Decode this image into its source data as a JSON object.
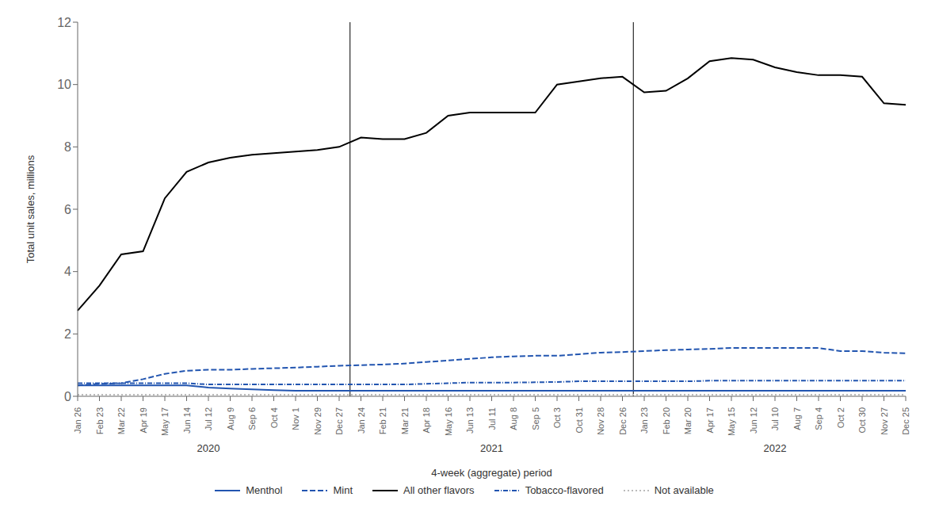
{
  "chart_data": {
    "type": "line",
    "xlabel": "4-week (aggregate) period",
    "ylabel": "Total unit sales, millions",
    "categories": [
      "Jan 26",
      "Feb 23",
      "Mar 22",
      "Apr 19",
      "May 17",
      "Jun 14",
      "Jul 12",
      "Aug 9",
      "Sep 6",
      "Oct 4",
      "Nov 1",
      "Nov 29",
      "Dec 27",
      "Jan 24",
      "Feb 21",
      "Mar 21",
      "Apr 18",
      "May 16",
      "Jun 13",
      "Jul 11",
      "Aug 8",
      "Sep 5",
      "Oct 3",
      "Oct 31",
      "Nov 28",
      "Dec 26",
      "Jan 23",
      "Feb 20",
      "Mar 20",
      "Apr 17",
      "May 15",
      "Jun 12",
      "Jul 10",
      "Aug 7",
      "Sep 4",
      "Oct 2",
      "Oct 30",
      "Nov 27",
      "Dec 25"
    ],
    "series": [
      {
        "name": "Menthol",
        "color": "#2255b0",
        "line_style": "solid",
        "values": [
          0.35,
          0.35,
          0.35,
          0.35,
          0.35,
          0.35,
          0.28,
          0.25,
          0.22,
          0.2,
          0.18,
          0.18,
          0.18,
          0.18,
          0.18,
          0.18,
          0.18,
          0.18,
          0.18,
          0.18,
          0.18,
          0.18,
          0.18,
          0.18,
          0.18,
          0.18,
          0.18,
          0.18,
          0.18,
          0.18,
          0.18,
          0.18,
          0.18,
          0.18,
          0.18,
          0.18,
          0.18,
          0.18,
          0.18
        ]
      },
      {
        "name": "Mint",
        "color": "#2255b0",
        "line_style": "dashed",
        "values": [
          0.35,
          0.4,
          0.42,
          0.55,
          0.72,
          0.82,
          0.85,
          0.85,
          0.88,
          0.9,
          0.92,
          0.95,
          0.98,
          1.0,
          1.02,
          1.05,
          1.1,
          1.15,
          1.2,
          1.25,
          1.28,
          1.3,
          1.3,
          1.35,
          1.4,
          1.42,
          1.45,
          1.48,
          1.5,
          1.52,
          1.55,
          1.55,
          1.55,
          1.55,
          1.55,
          1.45,
          1.45,
          1.4,
          1.38
        ]
      },
      {
        "name": "All other flavors",
        "color": "#000000",
        "line_style": "solid",
        "values": [
          2.75,
          3.55,
          4.55,
          4.65,
          6.35,
          7.2,
          7.5,
          7.65,
          7.75,
          7.8,
          7.85,
          7.9,
          8.0,
          8.3,
          8.25,
          8.25,
          8.45,
          9.0,
          9.1,
          9.1,
          9.1,
          9.1,
          10.0,
          10.1,
          10.2,
          10.25,
          9.75,
          9.8,
          10.2,
          10.75,
          10.85,
          10.8,
          10.55,
          10.4,
          10.3,
          10.3,
          10.25,
          9.4,
          9.35
        ]
      },
      {
        "name": "Tobacco-flavored",
        "color": "#2255b0",
        "line_style": "dashdot",
        "values": [
          0.42,
          0.42,
          0.42,
          0.42,
          0.42,
          0.42,
          0.38,
          0.38,
          0.38,
          0.38,
          0.38,
          0.38,
          0.38,
          0.38,
          0.38,
          0.38,
          0.4,
          0.42,
          0.44,
          0.44,
          0.44,
          0.45,
          0.46,
          0.48,
          0.48,
          0.48,
          0.48,
          0.48,
          0.48,
          0.5,
          0.5,
          0.5,
          0.5,
          0.5,
          0.5,
          0.5,
          0.5,
          0.5,
          0.5
        ]
      },
      {
        "name": "Not available",
        "color": "#bbbbbb",
        "line_style": "dotted",
        "values": [
          0.05,
          0.05,
          0.05,
          0.05,
          0.05,
          0.05,
          0.05,
          0.05,
          0.05,
          0.05,
          0.05,
          0.05,
          0.05,
          0.05,
          0.05,
          0.05,
          0.05,
          0.05,
          0.05,
          0.05,
          0.05,
          0.05,
          0.05,
          0.05,
          0.05,
          0.05,
          0.05,
          0.05,
          0.05,
          0.05,
          0.05,
          0.05,
          0.05,
          0.05,
          0.05,
          0.05,
          0.05,
          0.05,
          0.05
        ]
      }
    ],
    "ylim": [
      0,
      12
    ],
    "yticks": [
      0,
      2,
      4,
      6,
      8,
      10,
      12
    ],
    "grid": false,
    "legend": "bottom",
    "annotations": [
      {
        "text": "2020",
        "x": "Jul 12"
      },
      {
        "text": "2021",
        "x": "Jul 11"
      },
      {
        "text": "2022",
        "x": "Jul 10"
      },
      {
        "between": [
          "Dec 27",
          "Jan 24"
        ]
      },
      {
        "between": [
          "Dec 26",
          "Jan 23"
        ]
      }
    ]
  }
}
